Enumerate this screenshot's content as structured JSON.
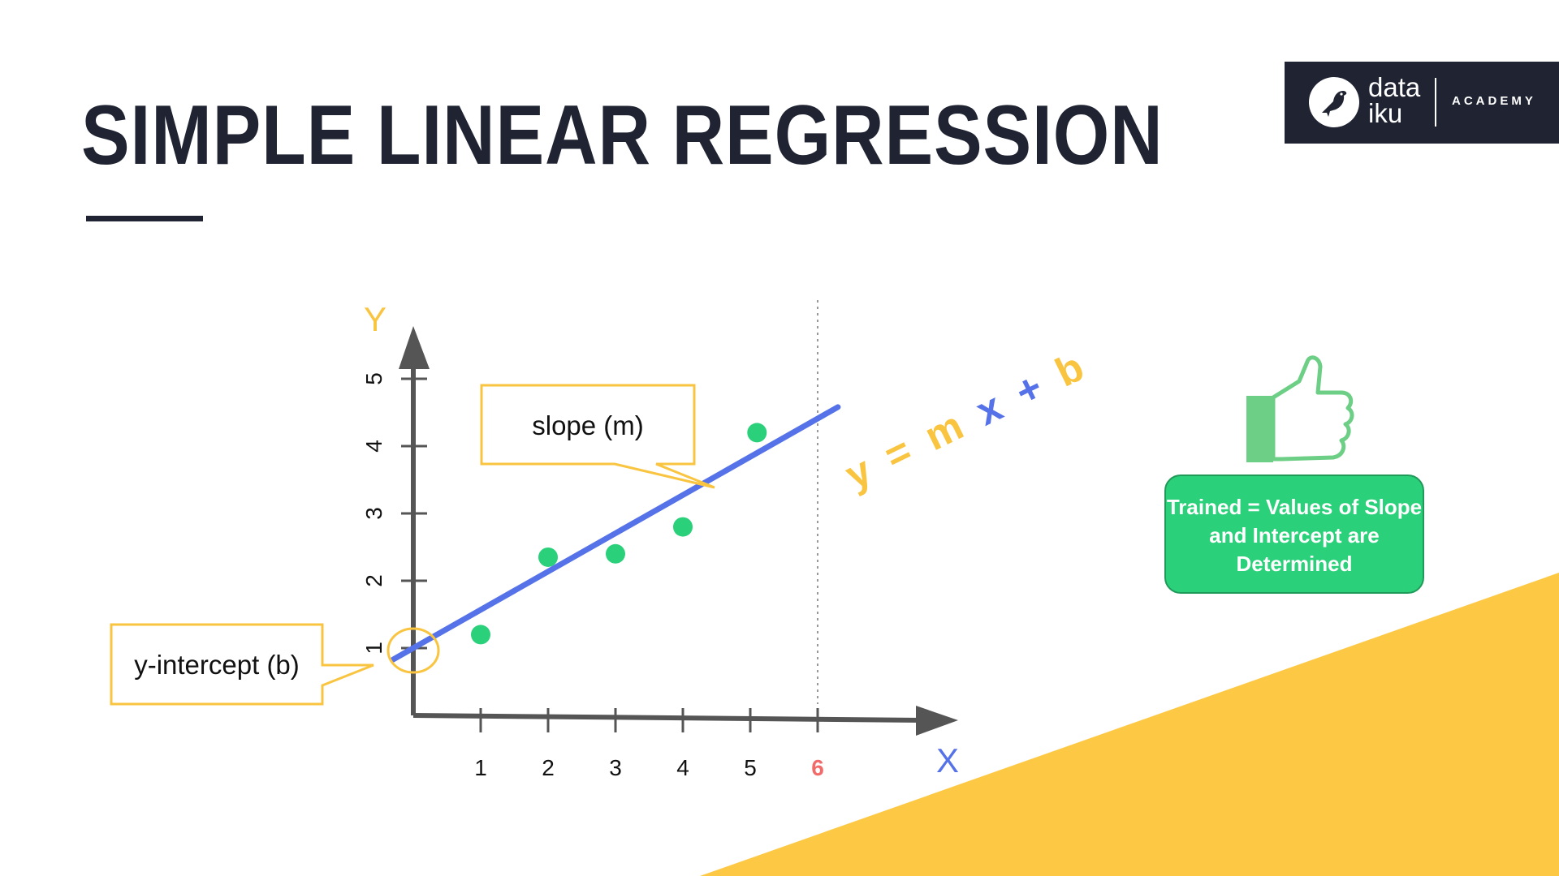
{
  "slide": {
    "title": "SIMPLE LINEAR REGRESSION",
    "logo": {
      "line1": "data",
      "line2": "iku",
      "label": "ACADEMY"
    },
    "info_box": "Trained = Values of Slope and Intercept are Determined",
    "callouts": {
      "slope": "slope (m)",
      "intercept": "y-intercept (b)"
    },
    "equation": {
      "y": "y",
      "eq": "=",
      "m": "m",
      "x": "x",
      "plus": "+",
      "b": "b"
    },
    "colors": {
      "title": "#1f2332",
      "line": "#5572e8",
      "points": "#2bd07a",
      "callout": "#f9c440",
      "highlight_tick": "#f26b6b",
      "triangle": "#fdc844"
    },
    "icons": [
      "thumbs-up-icon",
      "dataiku-bird-icon"
    ]
  },
  "chart_data": {
    "type": "scatter",
    "xlabel": "X",
    "ylabel": "Y",
    "x_ticks": [
      "1",
      "2",
      "3",
      "4",
      "5",
      "6"
    ],
    "y_ticks": [
      "1",
      "2",
      "3",
      "4",
      "5"
    ],
    "highlight_x_tick": "6",
    "points": [
      {
        "x": 1,
        "y": 1.2
      },
      {
        "x": 2,
        "y": 2.35
      },
      {
        "x": 3,
        "y": 2.4
      },
      {
        "x": 4,
        "y": 2.8
      },
      {
        "x": 5.1,
        "y": 4.2
      }
    ],
    "regression_line": {
      "x": [
        -0.3,
        6.3
      ],
      "y": [
        0.83,
        4.58
      ]
    },
    "dashed_x": 6,
    "intercept_y": 1
  }
}
